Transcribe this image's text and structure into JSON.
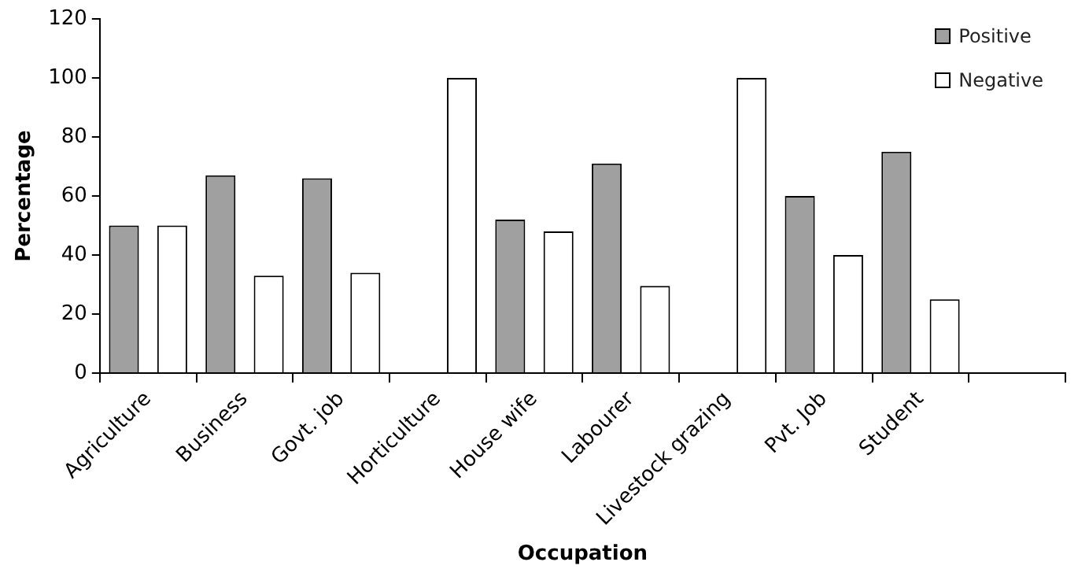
{
  "chart_data": {
    "type": "bar",
    "xlabel": "Occupation",
    "ylabel": "Percentage",
    "categories": [
      "Agriculture",
      "Business",
      "Govt. job",
      "Horticulture",
      "House wife",
      "Labourer",
      "Livestock grazing",
      "Pvt. Job",
      "Student",
      null
    ],
    "series": [
      {
        "name": "Positive",
        "color": "#a0a0a0",
        "values": [
          50,
          67,
          66,
          0,
          52,
          71,
          0,
          60,
          75,
          null
        ]
      },
      {
        "name": "Negative",
        "color": "#ffffff",
        "values": [
          50,
          33,
          34,
          100,
          48,
          29.5,
          100,
          40,
          25,
          null
        ]
      }
    ],
    "ylim": [
      0,
      120
    ],
    "yticks": [
      0,
      20,
      40,
      60,
      80,
      100,
      120
    ],
    "grid": false,
    "legend": "top right"
  }
}
